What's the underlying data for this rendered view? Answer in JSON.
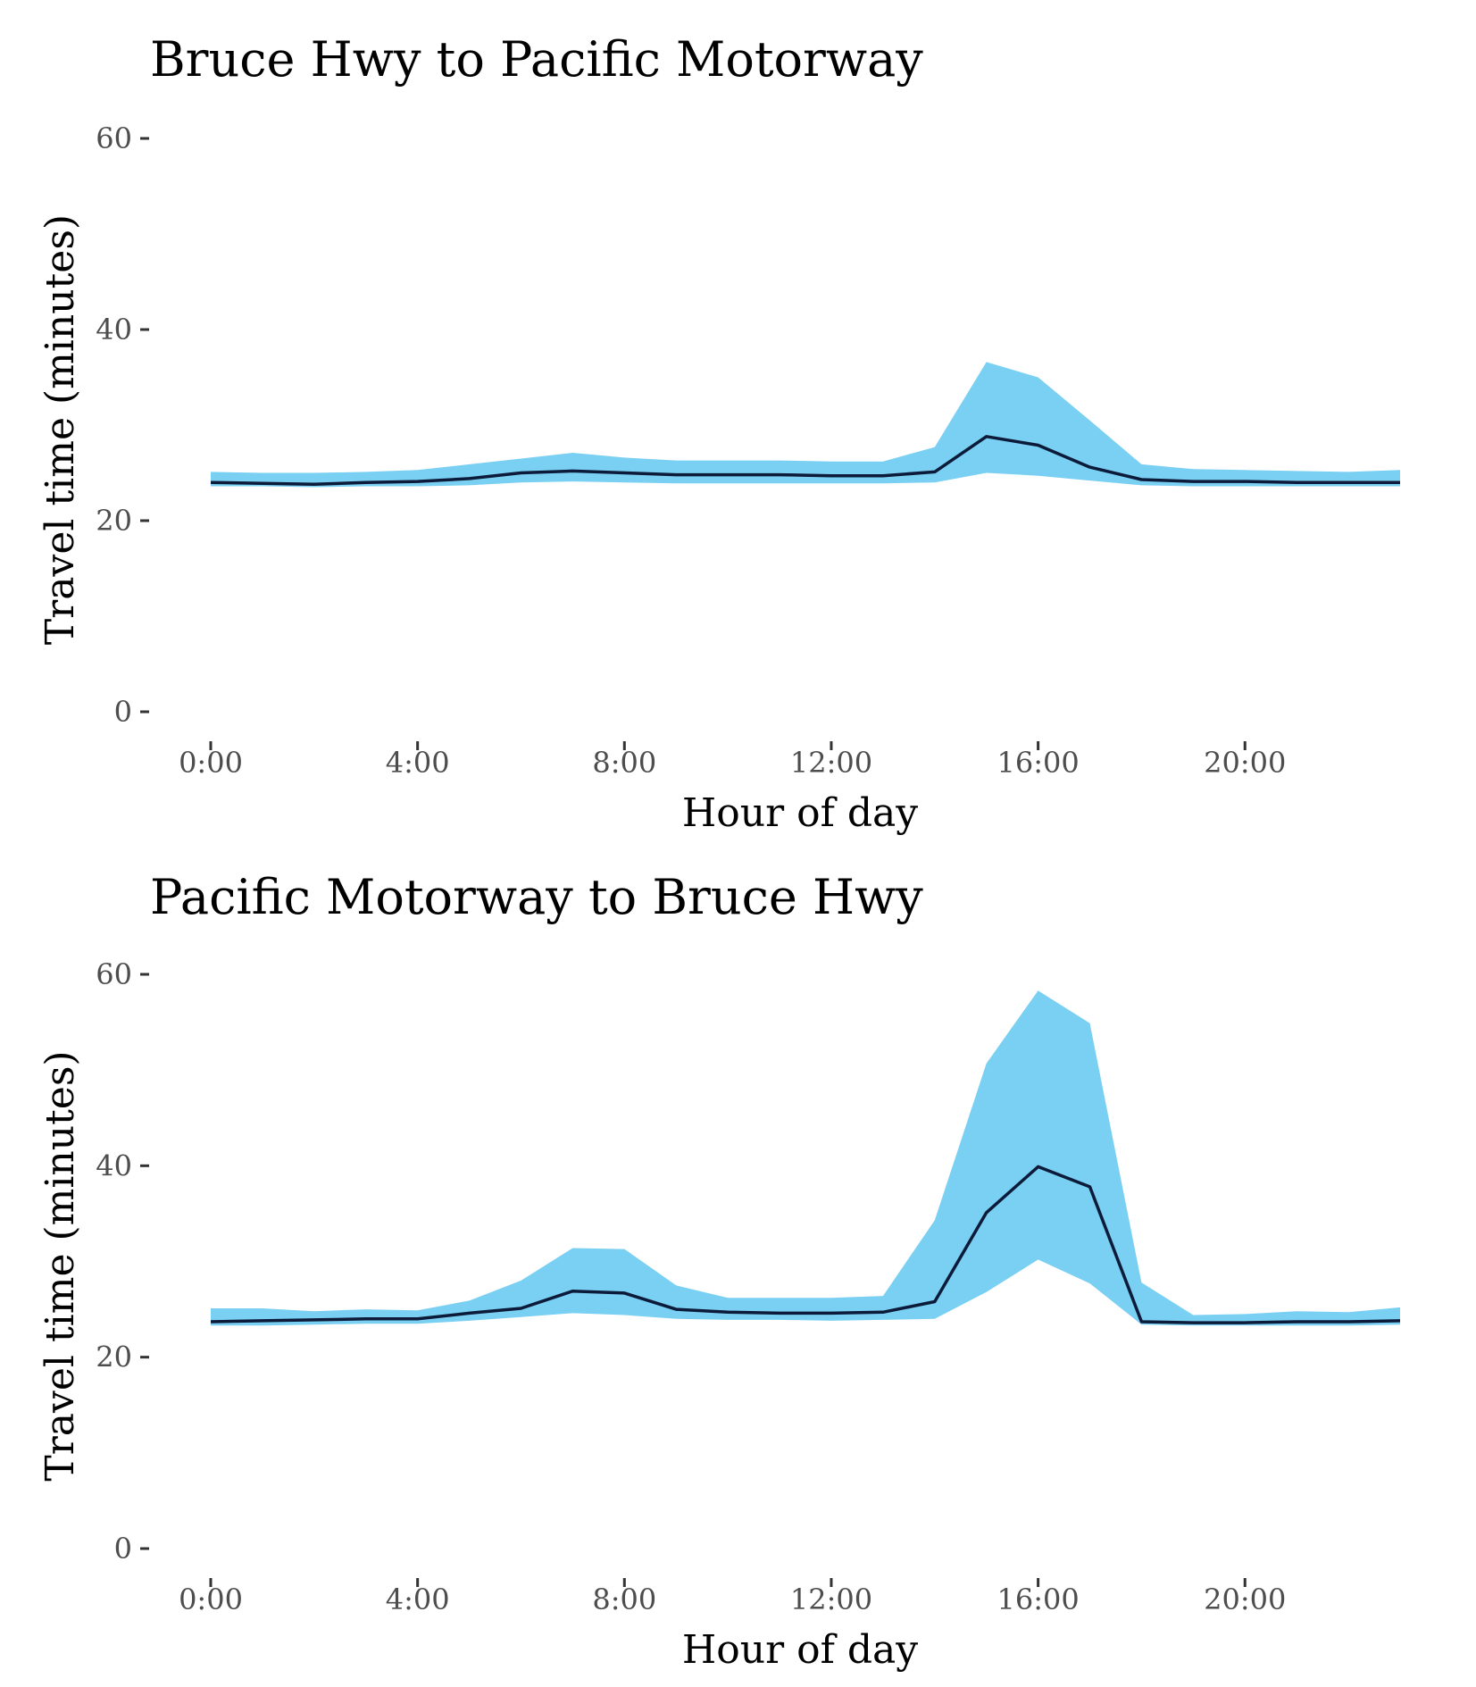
{
  "chart_data": [
    {
      "type": "area",
      "title": "Bruce Hwy to Pacific Motorway",
      "xlabel": "Hour of day",
      "ylabel": "Travel time (minutes)",
      "ylim": [
        0,
        60
      ],
      "xlim": [
        0,
        23
      ],
      "grid": false,
      "yticks": [
        0,
        20,
        40,
        60
      ],
      "xticks": [
        0,
        4,
        8,
        12,
        16,
        20
      ],
      "xtick_labels": [
        "0:00",
        "4:00",
        "8:00",
        "12:00",
        "16:00",
        "20:00"
      ],
      "x": [
        0,
        1,
        2,
        3,
        4,
        5,
        6,
        7,
        8,
        9,
        10,
        11,
        12,
        13,
        14,
        15,
        16,
        17,
        18,
        19,
        20,
        21,
        22,
        23
      ],
      "series": [
        {
          "kind": "line",
          "color": "#0d1b3a",
          "values": [
            24.0,
            23.9,
            23.8,
            24.0,
            24.1,
            24.4,
            25.0,
            25.2,
            25.0,
            24.8,
            24.8,
            24.8,
            24.7,
            24.7,
            25.1,
            28.8,
            27.9,
            25.6,
            24.3,
            24.1,
            24.1,
            24.0,
            24.0,
            24.0
          ]
        },
        {
          "kind": "band",
          "color": "#7ad0f2",
          "lower": [
            23.6,
            23.6,
            23.5,
            23.6,
            23.6,
            23.7,
            24.0,
            24.1,
            24.0,
            23.9,
            23.9,
            23.9,
            23.9,
            23.9,
            24.0,
            25.0,
            24.7,
            24.2,
            23.7,
            23.6,
            23.6,
            23.6,
            23.6,
            23.6
          ],
          "upper": [
            25.1,
            25.0,
            25.0,
            25.1,
            25.3,
            25.9,
            26.5,
            27.1,
            26.6,
            26.3,
            26.3,
            26.3,
            26.2,
            26.2,
            27.7,
            36.6,
            35.0,
            30.5,
            25.9,
            25.4,
            25.3,
            25.2,
            25.1,
            25.3
          ]
        }
      ]
    },
    {
      "type": "area",
      "title": "Pacific Motorway to Bruce Hwy",
      "xlabel": "Hour of day",
      "ylabel": "Travel time (minutes)",
      "ylim": [
        0,
        60
      ],
      "xlim": [
        0,
        23
      ],
      "grid": false,
      "yticks": [
        0,
        20,
        40,
        60
      ],
      "xticks": [
        0,
        4,
        8,
        12,
        16,
        20
      ],
      "xtick_labels": [
        "0:00",
        "4:00",
        "8:00",
        "12:00",
        "16:00",
        "20:00"
      ],
      "x": [
        0,
        1,
        2,
        3,
        4,
        5,
        6,
        7,
        8,
        9,
        10,
        11,
        12,
        13,
        14,
        15,
        16,
        17,
        18,
        19,
        20,
        21,
        22,
        23
      ],
      "series": [
        {
          "kind": "line",
          "color": "#0d1b3a",
          "values": [
            23.7,
            23.8,
            23.9,
            24.0,
            24.0,
            24.6,
            25.1,
            26.9,
            26.7,
            25.0,
            24.7,
            24.6,
            24.6,
            24.7,
            25.8,
            35.1,
            39.9,
            37.8,
            23.7,
            23.6,
            23.6,
            23.7,
            23.7,
            23.8
          ]
        },
        {
          "kind": "band",
          "color": "#7ad0f2",
          "lower": [
            23.3,
            23.3,
            23.4,
            23.5,
            23.5,
            23.8,
            24.2,
            24.6,
            24.4,
            24.0,
            23.9,
            23.9,
            23.8,
            23.9,
            24.0,
            26.8,
            30.2,
            27.7,
            23.4,
            23.3,
            23.3,
            23.3,
            23.3,
            23.4
          ],
          "upper": [
            25.1,
            25.1,
            24.8,
            25.0,
            24.9,
            25.9,
            28.0,
            31.4,
            31.3,
            27.5,
            26.2,
            26.2,
            26.2,
            26.4,
            34.3,
            50.7,
            58.3,
            54.9,
            27.8,
            24.4,
            24.5,
            24.8,
            24.7,
            25.2
          ]
        }
      ]
    }
  ]
}
